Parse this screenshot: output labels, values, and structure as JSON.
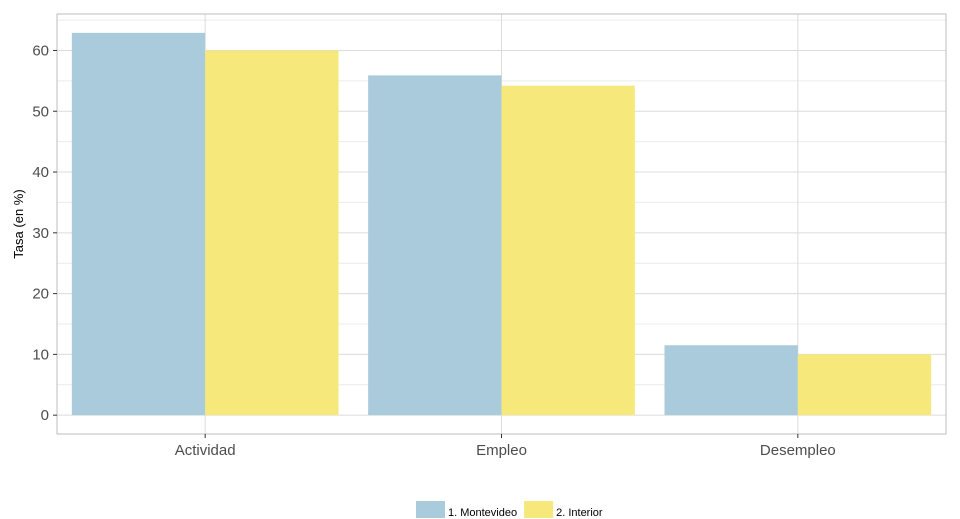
{
  "chart_data": {
    "type": "bar",
    "title": "",
    "xlabel": "",
    "ylabel": "Tasa (en %)",
    "categories": [
      "Actividad",
      "Empleo",
      "Desempleo"
    ],
    "series": [
      {
        "name": "1. Montevideo",
        "color": "#a9cbdb",
        "values": [
          62.9,
          55.9,
          11.5
        ]
      },
      {
        "name": "2. Interior",
        "color": "#f6e87b",
        "values": [
          60.0,
          54.2,
          10.0
        ]
      }
    ],
    "y_ticks": [
      0,
      10,
      20,
      30,
      40,
      50,
      60
    ],
    "ylim": [
      -3.1,
      66.0
    ],
    "grid": true,
    "legend_position": "bottom"
  }
}
